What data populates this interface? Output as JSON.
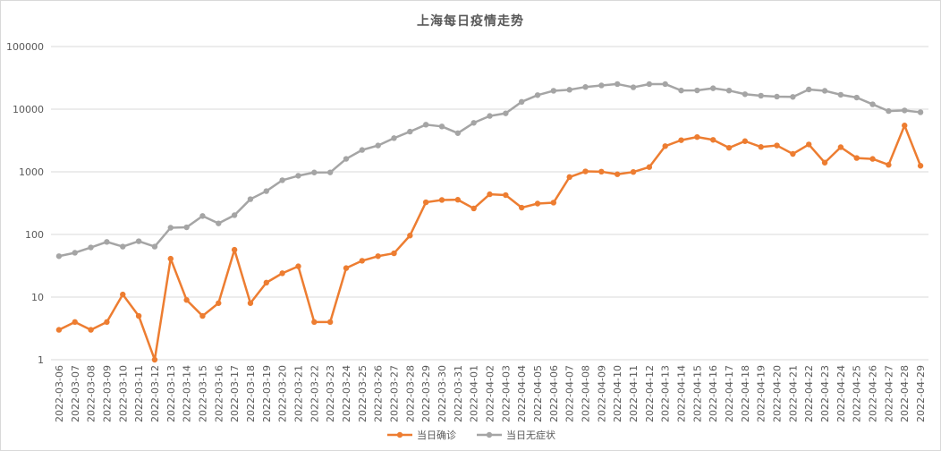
{
  "chart_data": {
    "type": "line",
    "title": "上海每日疫情走势",
    "xlabel": "",
    "ylabel": "",
    "yscale": "log",
    "ylim": [
      1,
      100000
    ],
    "yticks": [
      "1",
      "10",
      "100",
      "1000",
      "10000",
      "100000"
    ],
    "grid": "horizontal",
    "legend_position": "bottom",
    "categories": [
      "2022-03-06",
      "2022-03-07",
      "2022-03-08",
      "2022-03-09",
      "2022-03-10",
      "2022-03-11",
      "2022-03-12",
      "2022-03-13",
      "2022-03-14",
      "2022-03-15",
      "2022-03-16",
      "2022-03-17",
      "2022-03-18",
      "2022-03-19",
      "2022-03-20",
      "2022-03-21",
      "2022-03-22",
      "2022-03-23",
      "2022-03-24",
      "2022-03-25",
      "2022-03-26",
      "2022-03-27",
      "2022-03-28",
      "2022-03-29",
      "2022-03-30",
      "2022-03-31",
      "2022-04-01",
      "2022-04-02",
      "2022-04-03",
      "2022-04-04",
      "2022-04-05",
      "2022-04-06",
      "2022-04-07",
      "2022-04-08",
      "2022-04-09",
      "2022-04-10",
      "2022-04-11",
      "2022-04-12",
      "2022-04-13",
      "2022-04-14",
      "2022-04-15",
      "2022-04-16",
      "2022-04-17",
      "2022-04-18",
      "2022-04-19",
      "2022-04-20",
      "2022-04-21",
      "2022-04-22",
      "2022-04-23",
      "2022-04-24",
      "2022-04-25",
      "2022-04-26",
      "2022-04-27",
      "2022-04-28",
      "2022-04-29"
    ],
    "series": [
      {
        "name": "当日确诊",
        "color": "#ed7d31",
        "values": [
          3,
          4,
          3,
          4,
          11,
          5,
          1,
          41,
          9,
          5,
          8,
          57,
          8,
          17,
          24,
          31,
          4,
          4,
          29,
          38,
          45,
          50,
          96,
          326,
          355,
          358,
          260,
          438,
          425,
          268,
          311,
          322,
          824,
          1015,
          1006,
          914,
          994,
          1189,
          2573,
          3200,
          3590,
          3238,
          2417,
          3084,
          2494,
          2634,
          1931,
          2736,
          1401,
          2472,
          1661,
          1606,
          1292,
          5487,
          1249
        ]
      },
      {
        "name": "当日无症状",
        "color": "#a5a5a5",
        "values": [
          45,
          51,
          62,
          76,
          64,
          78,
          64,
          128,
          130,
          197,
          150,
          203,
          366,
          492,
          734,
          865,
          976,
          979,
          1609,
          2231,
          2631,
          3450,
          4381,
          5656,
          5298,
          4144,
          6051,
          7788,
          8581,
          13086,
          16766,
          19660,
          20398,
          22609,
          23937,
          25173,
          22348,
          25146,
          25141,
          19872,
          19923,
          21582,
          19831,
          17332,
          16407,
          15861,
          15698,
          20634,
          19657,
          16983,
          15319,
          11956,
          9330,
          9545,
          8932
        ]
      }
    ]
  }
}
